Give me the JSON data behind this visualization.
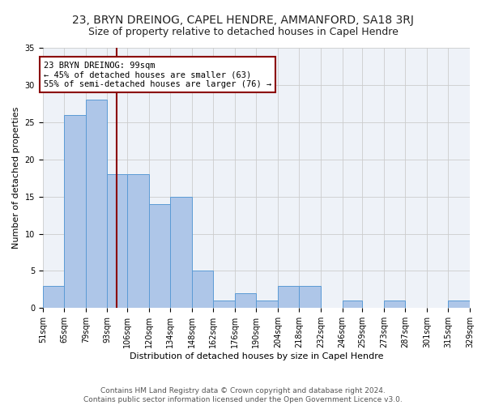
{
  "title": "23, BRYN DREINOG, CAPEL HENDRE, AMMANFORD, SA18 3RJ",
  "subtitle": "Size of property relative to detached houses in Capel Hendre",
  "xlabel": "Distribution of detached houses by size in Capel Hendre",
  "ylabel": "Number of detached properties",
  "footer_line1": "Contains HM Land Registry data © Crown copyright and database right 2024.",
  "footer_line2": "Contains public sector information licensed under the Open Government Licence v3.0.",
  "annotation_line1": "23 BRYN DREINOG: 99sqm",
  "annotation_line2": "← 45% of detached houses are smaller (63)",
  "annotation_line3": "55% of semi-detached houses are larger (76) →",
  "property_size_sqm": 99,
  "bin_edges": [
    51,
    65,
    79,
    93,
    106,
    120,
    134,
    148,
    162,
    176,
    190,
    204,
    218,
    232,
    246,
    259,
    273,
    287,
    301,
    315,
    329
  ],
  "bin_labels": [
    "51sqm",
    "65sqm",
    "79sqm",
    "93sqm",
    "106sqm",
    "120sqm",
    "134sqm",
    "148sqm",
    "162sqm",
    "176sqm",
    "190sqm",
    "204sqm",
    "218sqm",
    "232sqm",
    "246sqm",
    "259sqm",
    "273sqm",
    "287sqm",
    "301sqm",
    "315sqm",
    "329sqm"
  ],
  "bar_counts": [
    3,
    26,
    28,
    18,
    18,
    14,
    15,
    5,
    1,
    2,
    1,
    3,
    3,
    0,
    1,
    0,
    1,
    0,
    0,
    1
  ],
  "bar_color": "#aec6e8",
  "bar_edge_color": "#5b9bd5",
  "vline_color": "#8b0000",
  "vline_x": 99,
  "annotation_box_color": "#8b0000",
  "ylim": [
    0,
    35
  ],
  "yticks": [
    0,
    5,
    10,
    15,
    20,
    25,
    30,
    35
  ],
  "grid_color": "#cccccc",
  "bg_color": "#eef2f8",
  "title_fontsize": 10,
  "subtitle_fontsize": 9,
  "axis_label_fontsize": 8,
  "tick_fontsize": 7,
  "annotation_fontsize": 7.5,
  "footer_fontsize": 6.5
}
